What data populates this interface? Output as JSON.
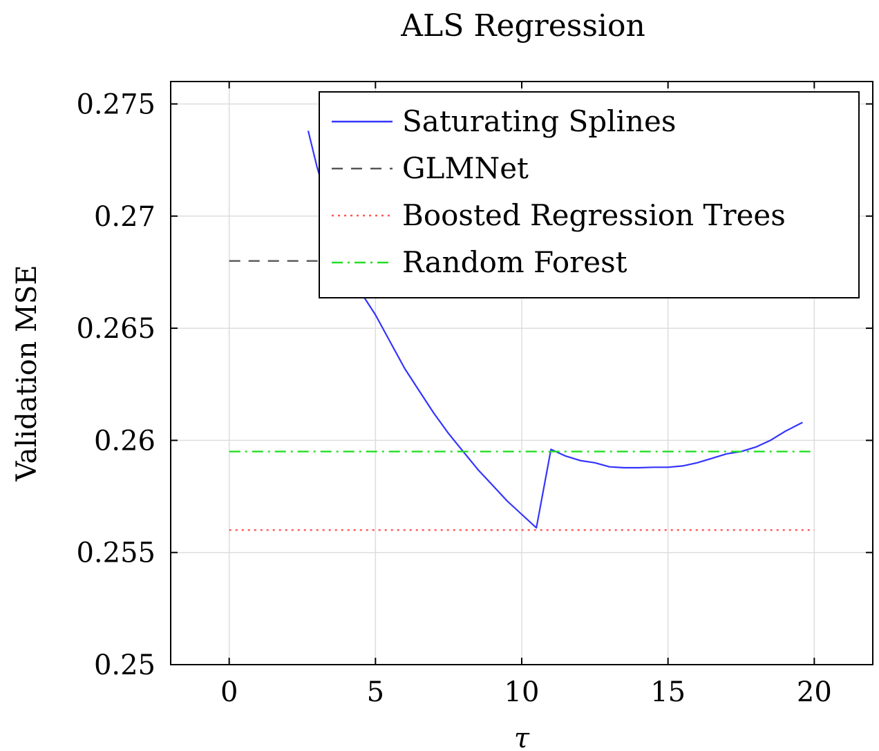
{
  "chart_data": {
    "type": "line",
    "title": "ALS Regression",
    "xlabel": "τ",
    "ylabel": "Validation MSE",
    "xlim": [
      -2,
      22
    ],
    "ylim": [
      0.25,
      0.276
    ],
    "xticks": [
      0,
      5,
      10,
      15,
      20
    ],
    "xtick_labels": [
      "0",
      "5",
      "10",
      "15",
      "20"
    ],
    "yticks": [
      0.25,
      0.255,
      0.26,
      0.265,
      0.27,
      0.275
    ],
    "ytick_labels": [
      "0.25",
      "0.255",
      "0.26",
      "0.265",
      "0.27",
      "0.275"
    ],
    "grid": true,
    "legend_position": "top-right",
    "series": [
      {
        "name": "Saturating Splines",
        "color": "#3333ff",
        "style": "solid",
        "x": [
          2.7,
          3.0,
          3.5,
          4.0,
          4.5,
          5.0,
          5.5,
          6.0,
          6.5,
          7.0,
          7.5,
          8.0,
          8.5,
          9.0,
          9.5,
          10.0,
          10.5,
          11.0,
          11.5,
          12.0,
          12.5,
          13.0,
          13.5,
          14.0,
          14.5,
          15.0,
          15.5,
          16.0,
          16.5,
          17.0,
          17.5,
          18.0,
          18.5,
          19.0,
          19.6
        ],
        "y": [
          0.2738,
          0.2722,
          0.27,
          0.268,
          0.2666,
          0.2656,
          0.2644,
          0.2632,
          0.2622,
          0.2612,
          0.2603,
          0.2595,
          0.2587,
          0.258,
          0.2573,
          0.2567,
          0.2561,
          0.2596,
          0.2593,
          0.2591,
          0.259,
          0.25882,
          0.25878,
          0.25878,
          0.2588,
          0.2588,
          0.25886,
          0.259,
          0.2592,
          0.2594,
          0.2595,
          0.2597,
          0.26,
          0.2604,
          0.2608
        ]
      },
      {
        "name": "GLMNet",
        "color": "#555555",
        "style": "dashed",
        "x": [
          0,
          20
        ],
        "y": [
          0.268,
          0.268
        ]
      },
      {
        "name": "Boosted Regression Trees",
        "color": "#ff5555",
        "style": "dotted",
        "x": [
          0,
          20
        ],
        "y": [
          0.256,
          0.256
        ]
      },
      {
        "name": "Random Forest",
        "color": "#22dd22",
        "style": "dashdot",
        "x": [
          0,
          20
        ],
        "y": [
          0.2595,
          0.2595
        ]
      }
    ]
  }
}
